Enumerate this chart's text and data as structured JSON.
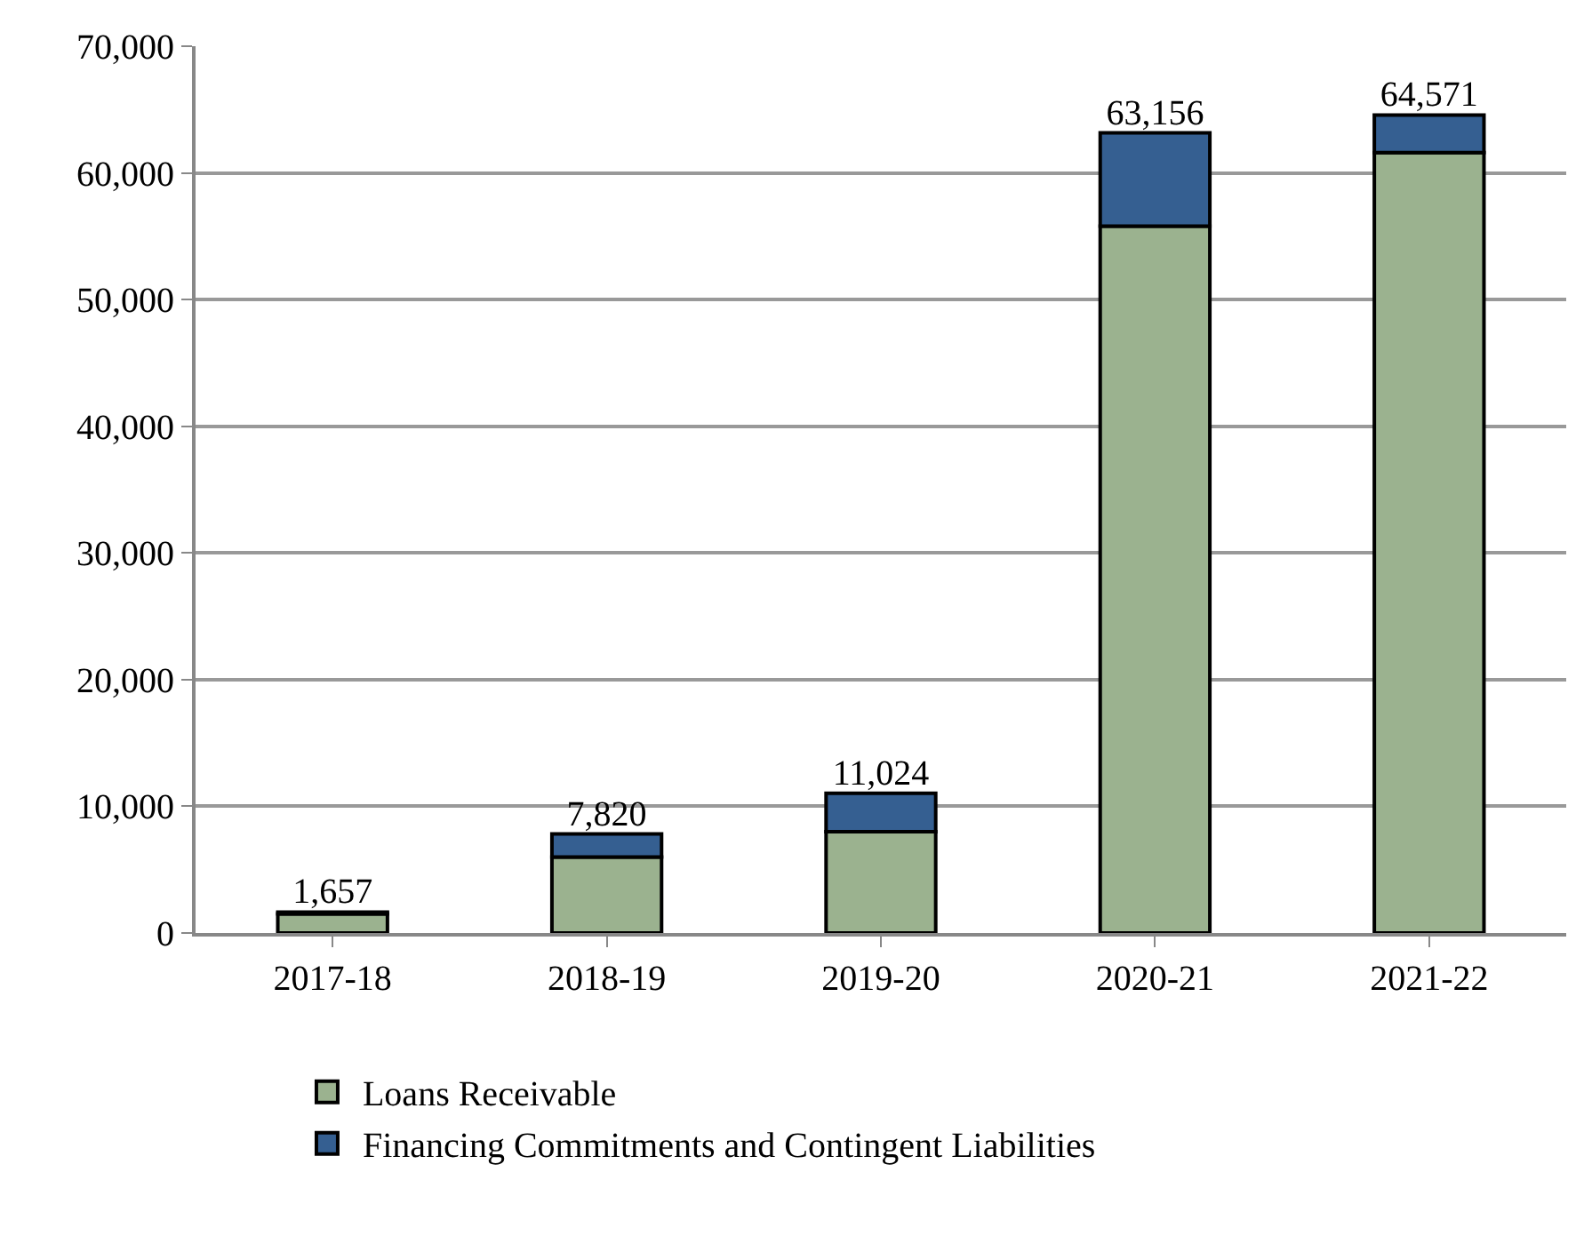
{
  "chart_data": {
    "type": "bar",
    "stacked": true,
    "categories": [
      "2017-18",
      "2018-19",
      "2019-20",
      "2020-21",
      "2021-22"
    ],
    "series": [
      {
        "name": "Loans Receivable",
        "color": "#9bb28f",
        "values": [
          1500,
          6000,
          8000,
          55800,
          61600
        ]
      },
      {
        "name": "Financing Commitments and Contingent Liabilities",
        "color": "#355f91",
        "values": [
          157,
          1820,
          3024,
          7356,
          2971
        ]
      }
    ],
    "totals": [
      "1,657",
      "7,820",
      "11,024",
      "63,156",
      "64,571"
    ],
    "ylim": [
      0,
      70000
    ],
    "yticks": [
      {
        "value": 0,
        "label": "0"
      },
      {
        "value": 10000,
        "label": "10,000"
      },
      {
        "value": 20000,
        "label": "20,000"
      },
      {
        "value": 30000,
        "label": "30,000"
      },
      {
        "value": 40000,
        "label": "40,000"
      },
      {
        "value": 50000,
        "label": "50,000"
      },
      {
        "value": 60000,
        "label": "60,000"
      },
      {
        "value": 70000,
        "label": "70,000"
      }
    ],
    "grid": "y",
    "legend": "bottom"
  }
}
